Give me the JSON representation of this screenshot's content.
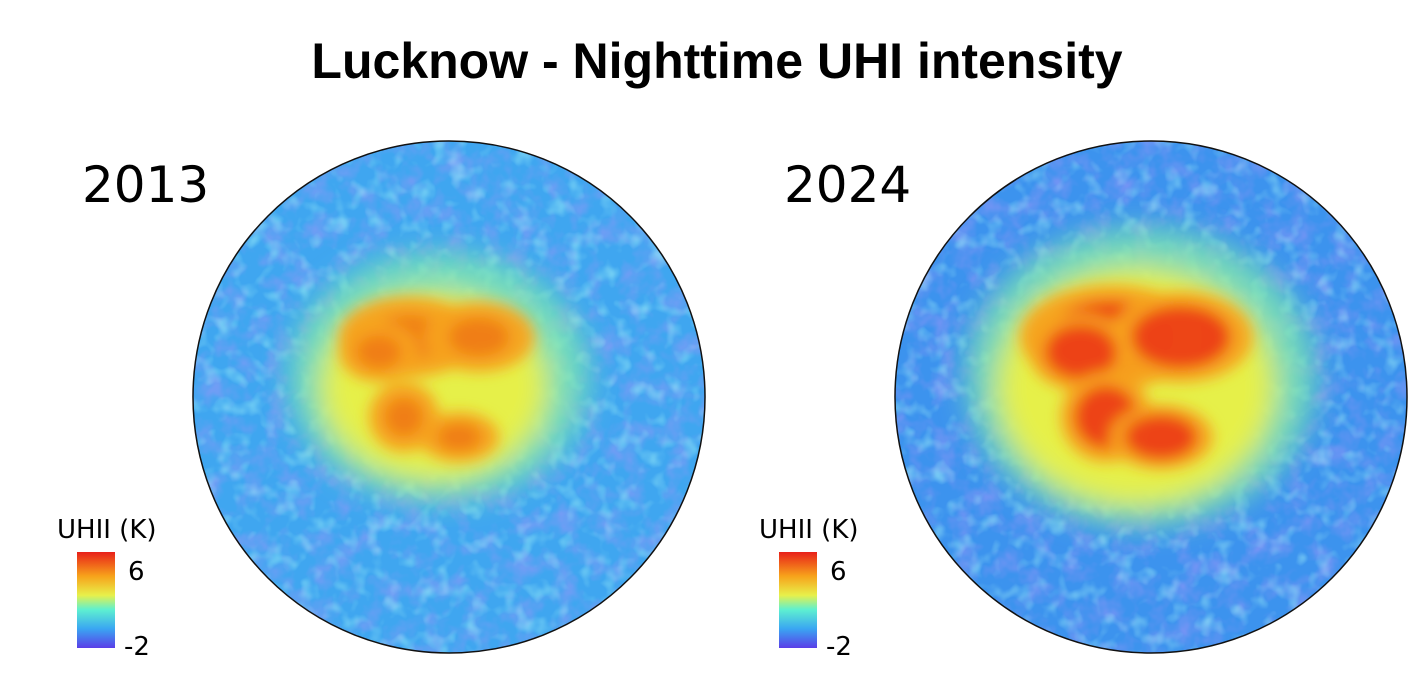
{
  "title": "Lucknow - Nighttime UHI intensity",
  "panels": [
    {
      "year": "2013",
      "legend": {
        "title": "UHII (K)",
        "max": "6",
        "min": "-2"
      }
    },
    {
      "year": "2024",
      "legend": {
        "title": "UHII (K)",
        "max": "6",
        "min": "-2"
      }
    }
  ]
}
